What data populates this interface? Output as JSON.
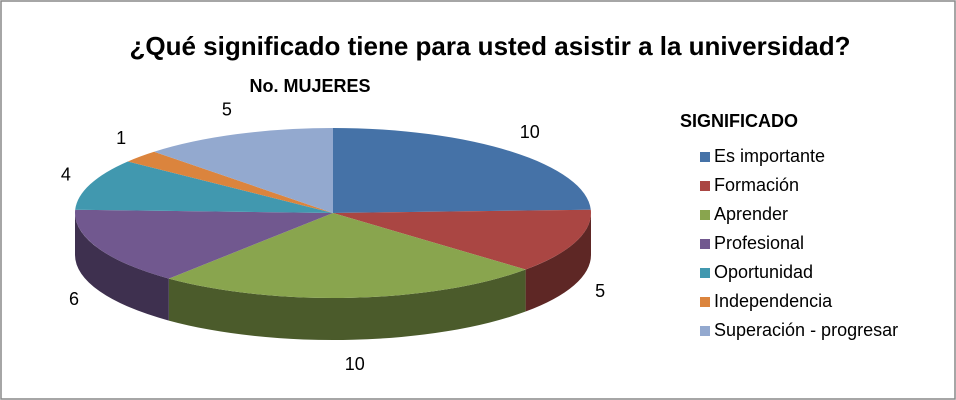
{
  "chart_data": {
    "type": "pie",
    "title": "¿Qué significado tiene para usted asistir a la universidad?",
    "subtitle": "No. MUJERES",
    "legend_title": "SIGNIFICADO",
    "categories": [
      "Es importante",
      "Formación",
      "Aprender",
      "Profesional",
      "Oportunidad",
      "Independencia",
      "Superación - progresar"
    ],
    "values": [
      10,
      5,
      10,
      6,
      4,
      1,
      5
    ],
    "colors": [
      "#4572a7",
      "#aa4643",
      "#89a54e",
      "#71588f",
      "#4198af",
      "#db843d",
      "#93a9cf"
    ],
    "legend_position": "right"
  }
}
